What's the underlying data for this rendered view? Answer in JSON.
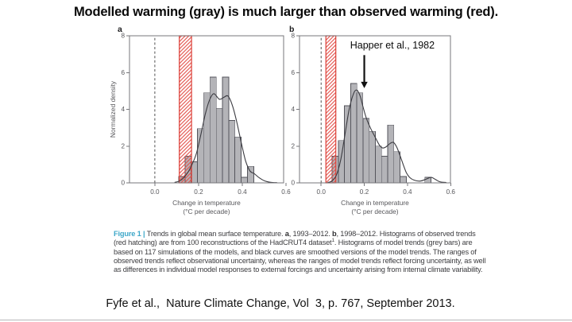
{
  "slide": {
    "title": "Modelled warming (gray) is much larger than observed warming (red).",
    "citation": "Fyfe et al.,  Nature Climate Change, Vol  3, p. 767, September 2013."
  },
  "caption": {
    "segments": [
      {
        "style": "figure-label",
        "text": "Figure 1 | "
      },
      {
        "style": "plain",
        "text": "Trends in global mean surface temperature. "
      },
      {
        "style": "bold",
        "text": "a"
      },
      {
        "style": "plain",
        "text": ", 1993–2012. "
      },
      {
        "style": "bold",
        "text": "b"
      },
      {
        "style": "plain",
        "text": ", 1998–2012. Histograms of observed trends (red hatching) are from 100 reconstructions of the HadCRUT4 dataset"
      },
      {
        "style": "sup",
        "text": "1"
      },
      {
        "style": "plain",
        "text": ". Histograms of model trends (grey bars) are based on 117 simulations of the models, and black curves are smoothed versions of the model trends. The ranges of observed trends reflect observational uncertainty, whereas the ranges of model trends reflect forcing uncertainty, as well as differences in individual model responses to external forcings and uncertainty arising from internal climate variability."
      }
    ]
  },
  "chart_data": [
    {
      "type": "histogram",
      "panel_label": "a",
      "period": "1993–2012",
      "ylabel": "Normalized density",
      "xlabel": "Change in temperature",
      "xlabel2": "(°C per decade)",
      "xlim": [
        -0.116,
        0.589
      ],
      "ylim": [
        0,
        8
      ],
      "xticks": [
        0.0,
        0.2,
        0.4,
        0.6
      ],
      "yticks": [
        0,
        2,
        4,
        6,
        8
      ],
      "zero_line": 0.0,
      "bin_width": 0.0286,
      "bars": [
        {
          "x": 0.109,
          "h": 0.35
        },
        {
          "x": 0.138,
          "h": 1.45
        },
        {
          "x": 0.166,
          "h": 1.15
        },
        {
          "x": 0.195,
          "h": 2.95
        },
        {
          "x": 0.223,
          "h": 4.9
        },
        {
          "x": 0.252,
          "h": 5.75
        },
        {
          "x": 0.281,
          "h": 4.05
        },
        {
          "x": 0.309,
          "h": 5.75
        },
        {
          "x": 0.338,
          "h": 3.4
        },
        {
          "x": 0.366,
          "h": 2.5
        },
        {
          "x": 0.395,
          "h": 0.3
        },
        {
          "x": 0.424,
          "h": 0.9
        }
      ],
      "curve": [
        [
          0.09,
          0.02
        ],
        [
          0.12,
          0.15
        ],
        [
          0.15,
          0.55
        ],
        [
          0.17,
          1.0
        ],
        [
          0.19,
          1.6
        ],
        [
          0.21,
          2.6
        ],
        [
          0.23,
          3.7
        ],
        [
          0.25,
          4.5
        ],
        [
          0.27,
          4.85
        ],
        [
          0.295,
          4.55
        ],
        [
          0.315,
          4.65
        ],
        [
          0.335,
          4.72
        ],
        [
          0.355,
          4.2
        ],
        [
          0.375,
          3.3
        ],
        [
          0.395,
          2.2
        ],
        [
          0.415,
          1.2
        ],
        [
          0.435,
          0.65
        ],
        [
          0.455,
          0.5
        ],
        [
          0.475,
          0.3
        ],
        [
          0.5,
          0.12
        ],
        [
          0.53,
          0.03
        ],
        [
          0.56,
          0.01
        ]
      ],
      "observed_band": {
        "x0": 0.112,
        "x1": 0.168,
        "meaning": "observed trends (red hatching)"
      },
      "annotation": null
    },
    {
      "type": "histogram",
      "panel_label": "b",
      "period": "1998–2012",
      "ylabel": "",
      "xlabel": "Change in temperature",
      "xlabel2": "(°C per decade)",
      "xlim": [
        -0.1,
        0.599
      ],
      "ylim": [
        0,
        8
      ],
      "xticks": [
        0.0,
        0.2,
        0.4,
        0.6
      ],
      "yticks": [
        0,
        2,
        4,
        6,
        8
      ],
      "zero_line": 0.0,
      "bin_width": 0.0286,
      "bars": [
        {
          "x": 0.051,
          "h": 1.45
        },
        {
          "x": 0.08,
          "h": 2.3
        },
        {
          "x": 0.108,
          "h": 4.2
        },
        {
          "x": 0.137,
          "h": 5.4
        },
        {
          "x": 0.165,
          "h": 4.9
        },
        {
          "x": 0.194,
          "h": 3.5
        },
        {
          "x": 0.223,
          "h": 2.8
        },
        {
          "x": 0.251,
          "h": 2.0
        },
        {
          "x": 0.28,
          "h": 1.45
        },
        {
          "x": 0.308,
          "h": 3.15
        },
        {
          "x": 0.337,
          "h": 1.7
        },
        {
          "x": 0.366,
          "h": 0.35
        },
        {
          "x": 0.48,
          "h": 0.3
        }
      ],
      "curve": [
        [
          0.03,
          0.02
        ],
        [
          0.05,
          0.1
        ],
        [
          0.07,
          0.4
        ],
        [
          0.09,
          1.2
        ],
        [
          0.11,
          2.6
        ],
        [
          0.13,
          4.0
        ],
        [
          0.15,
          4.85
        ],
        [
          0.165,
          5.05
        ],
        [
          0.18,
          4.75
        ],
        [
          0.195,
          4.1
        ],
        [
          0.21,
          3.5
        ],
        [
          0.23,
          2.95
        ],
        [
          0.25,
          2.5
        ],
        [
          0.27,
          2.05
        ],
        [
          0.285,
          1.9
        ],
        [
          0.3,
          1.95
        ],
        [
          0.32,
          2.15
        ],
        [
          0.335,
          2.2
        ],
        [
          0.35,
          1.95
        ],
        [
          0.365,
          1.5
        ],
        [
          0.38,
          1.0
        ],
        [
          0.395,
          0.55
        ],
        [
          0.41,
          0.3
        ],
        [
          0.43,
          0.15
        ],
        [
          0.46,
          0.1
        ],
        [
          0.49,
          0.22
        ],
        [
          0.51,
          0.3
        ],
        [
          0.53,
          0.18
        ],
        [
          0.55,
          0.06
        ],
        [
          0.58,
          0.02
        ]
      ],
      "observed_band": {
        "x0": 0.022,
        "x1": 0.068,
        "meaning": "observed trends (red hatching)"
      },
      "annotation": {
        "text": "Happer et al., 1982",
        "text_x": 0.33,
        "text_y": 7.3,
        "arrow_x": 0.2,
        "arrow_y_from": 6.95,
        "arrow_y_to": 5.15
      }
    }
  ],
  "colors": {
    "bar_fill": "#b4b4b8",
    "bar_stroke": "#55555c",
    "curve": "#3b3b41",
    "red": "#dd4038",
    "hatch_line": "#e25049",
    "frame": "#77777b",
    "zero_line": "#3c3c3c",
    "annotation": "#111111"
  }
}
